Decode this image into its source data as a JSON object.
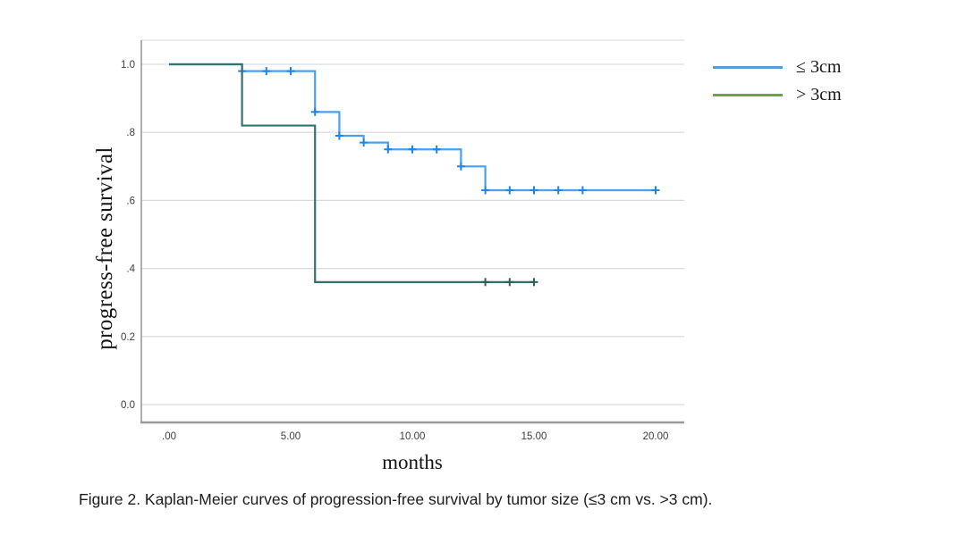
{
  "caption": "Figure 2. Kaplan-Meier curves of progression-free survival by tumor size (≤3 cm vs. >3 cm).",
  "chart_data": {
    "type": "line",
    "subtype": "kaplan-meier-step-curves",
    "title": "",
    "xlabel": "months",
    "ylabel": "progress-free survival",
    "grid": "horizontal",
    "legend_position": "top-right",
    "colors": {
      "gridline": "#d9d9d9",
      "frame_top": "#d9d9d9",
      "axis": "#9a9a9a",
      "tick_text": "#3c3c3c"
    },
    "x_axis": {
      "label": "months",
      "range": [
        0,
        20
      ],
      "ticks": [
        {
          "value": 0,
          "label": ".00"
        },
        {
          "value": 5,
          "label": "5.00"
        },
        {
          "value": 10,
          "label": "10.00"
        },
        {
          "value": 15,
          "label": "15.00"
        },
        {
          "value": 20,
          "label": "20.00"
        }
      ]
    },
    "y_axis": {
      "label": "progress-free survival",
      "range": [
        0,
        1
      ],
      "ticks": [
        {
          "value": 1.0,
          "label": "1.0"
        },
        {
          "value": 0.8,
          "label": ".8"
        },
        {
          "value": 0.6,
          "label": ".6"
        },
        {
          "value": 0.4,
          "label": ".4"
        },
        {
          "value": 0.2,
          "label": "0.2"
        },
        {
          "value": 0.0,
          "label": "0.0"
        }
      ]
    },
    "series": [
      {
        "name": "≤ 3cm",
        "key": "le-3cm",
        "color": "#47a1f1",
        "censor_color": "#1e86e0",
        "legend_color": "#5b9bd5",
        "steps": [
          [
            0,
            1.0
          ],
          [
            3,
            1.0
          ],
          [
            3,
            0.98
          ],
          [
            6,
            0.98
          ],
          [
            6,
            0.86
          ],
          [
            7,
            0.86
          ],
          [
            7,
            0.79
          ],
          [
            8,
            0.79
          ],
          [
            8,
            0.77
          ],
          [
            9,
            0.77
          ],
          [
            9,
            0.75
          ],
          [
            12,
            0.75
          ],
          [
            12,
            0.7
          ],
          [
            13,
            0.7
          ],
          [
            13,
            0.63
          ],
          [
            20,
            0.63
          ]
        ],
        "censors": [
          [
            3,
            0.98
          ],
          [
            4,
            0.98
          ],
          [
            5,
            0.98
          ],
          [
            6,
            0.86
          ],
          [
            7,
            0.79
          ],
          [
            8,
            0.77
          ],
          [
            9,
            0.75
          ],
          [
            10,
            0.75
          ],
          [
            11,
            0.75
          ],
          [
            12,
            0.7
          ],
          [
            13,
            0.63
          ],
          [
            14,
            0.63
          ],
          [
            15,
            0.63
          ],
          [
            16,
            0.63
          ],
          [
            17,
            0.63
          ],
          [
            20,
            0.63
          ]
        ]
      },
      {
        "name": "> 3cm",
        "key": "gt-3cm",
        "color": "#35726e",
        "censor_color": "#2b5f5c",
        "legend_color": "#66a83d",
        "steps": [
          [
            0,
            1.0
          ],
          [
            3,
            1.0
          ],
          [
            3,
            0.82
          ],
          [
            6,
            0.82
          ],
          [
            6,
            0.36
          ],
          [
            15,
            0.36
          ]
        ],
        "censors": [
          [
            13,
            0.36
          ],
          [
            14,
            0.36
          ],
          [
            15,
            0.36
          ]
        ]
      }
    ]
  }
}
